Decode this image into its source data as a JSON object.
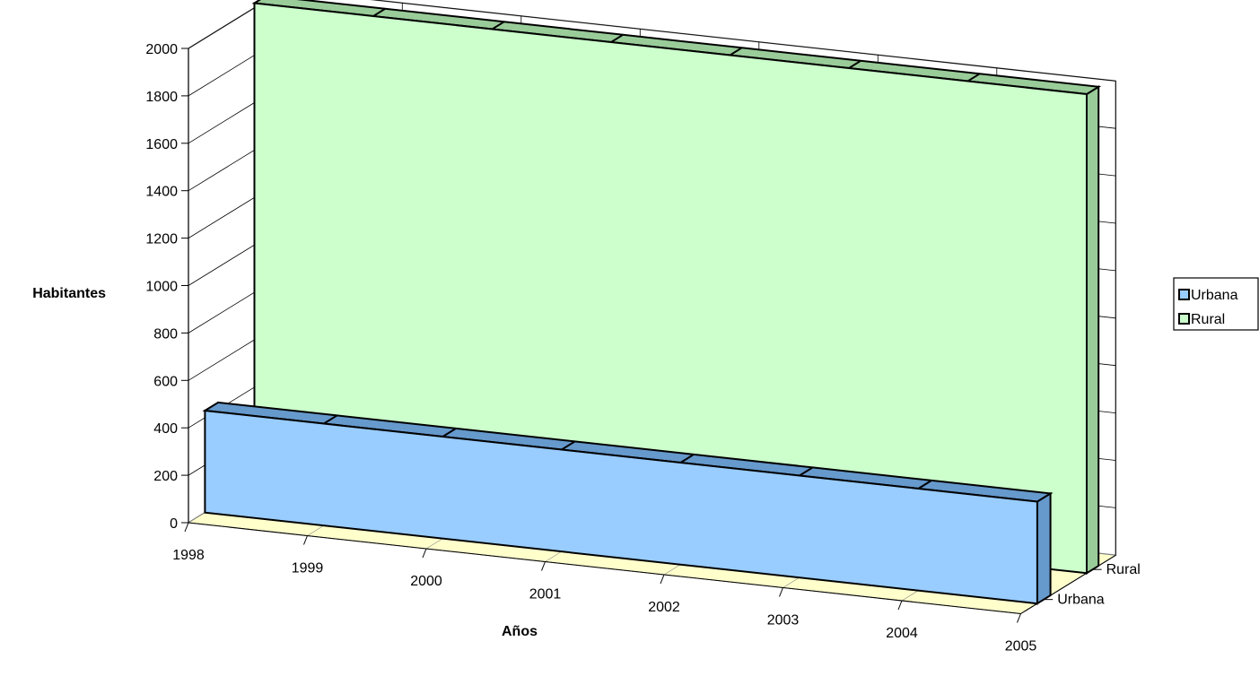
{
  "chart_data": {
    "type": "area",
    "style": "3d",
    "categories": [
      "1998",
      "1999",
      "2000",
      "2001",
      "2002",
      "2003",
      "2004",
      "2005"
    ],
    "series": [
      {
        "name": "Urbana",
        "values": [
          430,
          430,
          430,
          430,
          430,
          430,
          430,
          430
        ],
        "color": "#99ccff"
      },
      {
        "name": "Rural",
        "values": [
          2020,
          2020,
          2020,
          2020,
          2020,
          2020,
          2020,
          2020
        ],
        "color": "#ccffcc"
      }
    ],
    "depth_labels": [
      "Urbana",
      "Rural"
    ],
    "xlabel": "Años",
    "ylabel": "Habitantes",
    "ylim": [
      0,
      2000
    ],
    "yticks": [
      "0",
      "200",
      "400",
      "600",
      "800",
      "1000",
      "1200",
      "1400",
      "1600",
      "1800",
      "2000"
    ],
    "grid": true,
    "legend": "right",
    "colors": {
      "floor": "#ffffcc",
      "grid": "#000000",
      "urbana_top": "#6699cc",
      "rural_top": "#99cc99"
    }
  }
}
